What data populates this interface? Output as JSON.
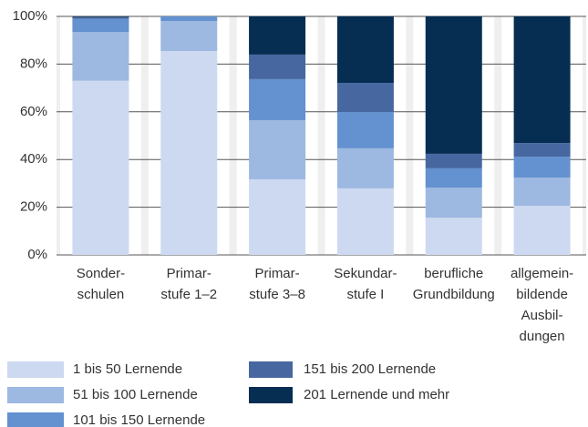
{
  "chart_data": {
    "type": "stacked_bar",
    "categories": [
      "Sonder-\nschulen",
      "Primar-\nstufe 1–2",
      "Primar-\nstufe 3–8",
      "Sekundar-\nstufe I",
      "berufliche\nGrundbildung",
      "allgemein-\nbildende\nAusbil-\ndungen"
    ],
    "series": [
      {
        "name": "1 bis 50 Lernende",
        "color": "#cdd9f1",
        "values": [
          73,
          85.5,
          31.7,
          27.9,
          15.6,
          20.6
        ]
      },
      {
        "name": "51 bis 100 Lernende",
        "color": "#9db8e1",
        "values": [
          20.5,
          12.6,
          24.8,
          16.8,
          12.6,
          11.8
        ]
      },
      {
        "name": "101 bis 150 Lernende",
        "color": "#6491cf",
        "values": [
          5.5,
          1.9,
          17.2,
          15.2,
          8.1,
          8.8
        ]
      },
      {
        "name": "151 bis 200 Lernende",
        "color": "#4767a0",
        "values": [
          0.7,
          0,
          10.3,
          12.2,
          6.1,
          5.7
        ]
      },
      {
        "name": "201 Lernende und mehr",
        "color": "#062d52",
        "values": [
          0.3,
          0,
          16,
          27.9,
          57.6,
          53.1
        ]
      }
    ],
    "ylim": [
      0,
      100
    ],
    "yticks": [
      {
        "value": 0,
        "label": "0%"
      },
      {
        "value": 20,
        "label": "20%"
      },
      {
        "value": 40,
        "label": "40%"
      },
      {
        "value": 60,
        "label": "60%"
      },
      {
        "value": 80,
        "label": "80%"
      },
      {
        "value": 100,
        "label": "100%"
      }
    ],
    "grid": true,
    "legend": "bottom"
  }
}
